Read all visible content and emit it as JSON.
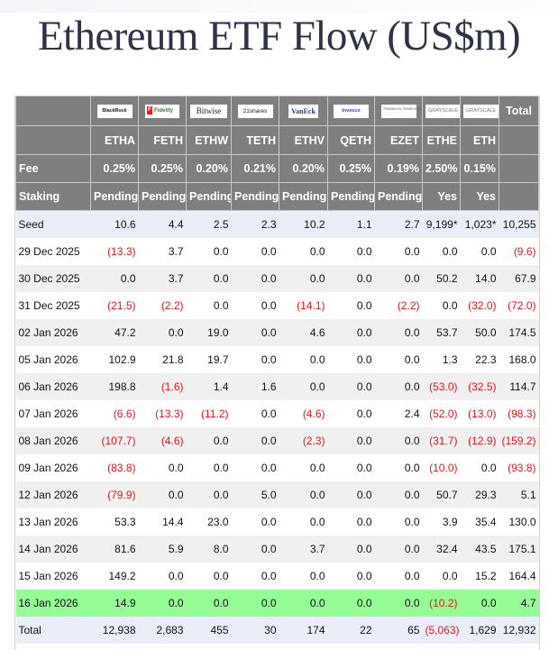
{
  "title": "Ethereum ETF Flow (US$m)",
  "colors": {
    "header_bg": "#7f7f7f",
    "negative": "#e8141e",
    "highlight_row": "#95fb95",
    "seed_total_row": "#eaeef8",
    "stripe": "#f0f0f0"
  },
  "columns": [
    {
      "issuer": "BlackRock",
      "issuer_logo": "blackrock-logo",
      "ticker": "ETHA",
      "fee": "0.25%",
      "staking": "Pending"
    },
    {
      "issuer": "Fidelity",
      "issuer_logo": "fidelity-logo",
      "ticker": "FETH",
      "fee": "0.25%",
      "staking": "Pending"
    },
    {
      "issuer": "Bitwise",
      "issuer_logo": "bitwise-logo",
      "ticker": "ETHW",
      "fee": "0.20%",
      "staking": "Pending"
    },
    {
      "issuer": "21shares",
      "issuer_logo": "21shares-logo",
      "ticker": "TETH",
      "fee": "0.21%",
      "staking": "Pending"
    },
    {
      "issuer": "VanEck",
      "issuer_logo": "vaneck-logo",
      "ticker": "ETHV",
      "fee": "0.20%",
      "staking": "Pending"
    },
    {
      "issuer": "Invesco",
      "issuer_logo": "invesco-logo",
      "ticker": "QETH",
      "fee": "0.25%",
      "staking": "Pending"
    },
    {
      "issuer": "FRANKLIN TEMPLETON",
      "issuer_logo": "franklin-templeton-logo",
      "ticker": "EZET",
      "fee": "0.19%",
      "staking": "Pending"
    },
    {
      "issuer": "GRAYSCALE",
      "issuer_logo": "grayscale-logo",
      "ticker": "ETHE",
      "fee": "2.50%",
      "staking": "Yes"
    },
    {
      "issuer": "GRAYSCALE",
      "issuer_logo": "grayscale-logo",
      "ticker": "ETH",
      "fee": "0.15%",
      "staking": "Yes"
    }
  ],
  "header": {
    "total_label": "Total",
    "fee_label": "Fee",
    "staking_label": "Staking"
  },
  "rows": [
    {
      "label": "Seed",
      "values": [
        "10.6",
        "4.4",
        "2.5",
        "2.3",
        "10.2",
        "1.1",
        "2.7",
        "9,199*",
        "1,023*",
        "10,255"
      ]
    },
    {
      "label": "29 Dec 2025",
      "values": [
        "(13.3)",
        "3.7",
        "0.0",
        "0.0",
        "0.0",
        "0.0",
        "0.0",
        "0.0",
        "0.0",
        "(9.6)"
      ]
    },
    {
      "label": "30 Dec 2025",
      "values": [
        "0.0",
        "3.7",
        "0.0",
        "0.0",
        "0.0",
        "0.0",
        "0.0",
        "50.2",
        "14.0",
        "67.9"
      ]
    },
    {
      "label": "31 Dec 2025",
      "values": [
        "(21.5)",
        "(2.2)",
        "0.0",
        "0.0",
        "(14.1)",
        "0.0",
        "(2.2)",
        "0.0",
        "(32.0)",
        "(72.0)"
      ]
    },
    {
      "label": "02 Jan 2026",
      "values": [
        "47.2",
        "0.0",
        "19.0",
        "0.0",
        "4.6",
        "0.0",
        "0.0",
        "53.7",
        "50.0",
        "174.5"
      ]
    },
    {
      "label": "05 Jan 2026",
      "values": [
        "102.9",
        "21.8",
        "19.7",
        "0.0",
        "0.0",
        "0.0",
        "0.0",
        "1.3",
        "22.3",
        "168.0"
      ]
    },
    {
      "label": "06 Jan 2026",
      "values": [
        "198.8",
        "(1.6)",
        "1.4",
        "1.6",
        "0.0",
        "0.0",
        "0.0",
        "(53.0)",
        "(32.5)",
        "114.7"
      ]
    },
    {
      "label": "07 Jan 2026",
      "values": [
        "(6.6)",
        "(13.3)",
        "(11.2)",
        "0.0",
        "(4.6)",
        "0.0",
        "2.4",
        "(52.0)",
        "(13.0)",
        "(98.3)"
      ]
    },
    {
      "label": "08 Jan 2026",
      "values": [
        "(107.7)",
        "(4.6)",
        "0.0",
        "0.0",
        "(2.3)",
        "0.0",
        "0.0",
        "(31.7)",
        "(12.9)",
        "(159.2)"
      ]
    },
    {
      "label": "09 Jan 2026",
      "values": [
        "(83.8)",
        "0.0",
        "0.0",
        "0.0",
        "0.0",
        "0.0",
        "0.0",
        "(10.0)",
        "0.0",
        "(93.8)"
      ]
    },
    {
      "label": "12 Jan 2026",
      "values": [
        "(79.9)",
        "0.0",
        "0.0",
        "5.0",
        "0.0",
        "0.0",
        "0.0",
        "50.7",
        "29.3",
        "5.1"
      ]
    },
    {
      "label": "13 Jan 2026",
      "values": [
        "53.3",
        "14.4",
        "23.0",
        "0.0",
        "0.0",
        "0.0",
        "0.0",
        "3.9",
        "35.4",
        "130.0"
      ]
    },
    {
      "label": "14 Jan 2026",
      "values": [
        "81.6",
        "5.9",
        "8.0",
        "0.0",
        "3.7",
        "0.0",
        "0.0",
        "32.4",
        "43.5",
        "175.1"
      ]
    },
    {
      "label": "15 Jan 2026",
      "values": [
        "149.2",
        "0.0",
        "0.0",
        "0.0",
        "0.0",
        "0.0",
        "0.0",
        "0.0",
        "15.2",
        "164.4"
      ]
    },
    {
      "label": "16 Jan 2026",
      "values": [
        "14.9",
        "0.0",
        "0.0",
        "0.0",
        "0.0",
        "0.0",
        "0.0",
        "(10.2)",
        "0.0",
        "4.7"
      ],
      "highlight": true
    },
    {
      "label": "Total",
      "values": [
        "12,938",
        "2,683",
        "455",
        "30",
        "174",
        "22",
        "65",
        "(5,063)",
        "1,629",
        "12,932"
      ]
    }
  ]
}
